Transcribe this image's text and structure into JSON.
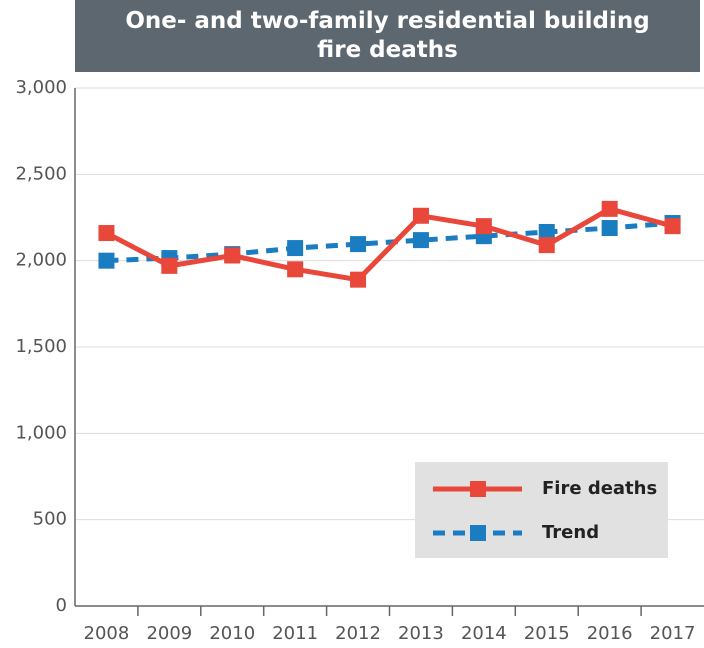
{
  "chart_data": {
    "type": "line",
    "title": "One- and two-family residential building fire deaths",
    "categories": [
      "2008",
      "2009",
      "2010",
      "2011",
      "2012",
      "2013",
      "2014",
      "2015",
      "2016",
      "2017"
    ],
    "series": [
      {
        "name": "Fire deaths",
        "color": "#e8473a",
        "dashed": false,
        "values": [
          2160,
          1970,
          2030,
          1950,
          1890,
          2260,
          2200,
          2090,
          2300,
          2200
        ]
      },
      {
        "name": "Trend",
        "color": "#1a7cc1",
        "dashed": true,
        "values": [
          2000,
          2015,
          2038,
          2073,
          2096,
          2119,
          2142,
          2166,
          2189,
          2218
        ]
      }
    ],
    "ylim": [
      0,
      3000
    ],
    "yticks": [
      0,
      500,
      {
        "value": 1000,
        "label": "1,000"
      },
      {
        "value": 1500,
        "label": "1,500"
      },
      {
        "value": 2000,
        "label": "2,000"
      },
      {
        "value": 2500,
        "label": "2,500"
      },
      {
        "value": 3000,
        "label": "3,000"
      }
    ],
    "grid": true,
    "legend": "lower right"
  }
}
